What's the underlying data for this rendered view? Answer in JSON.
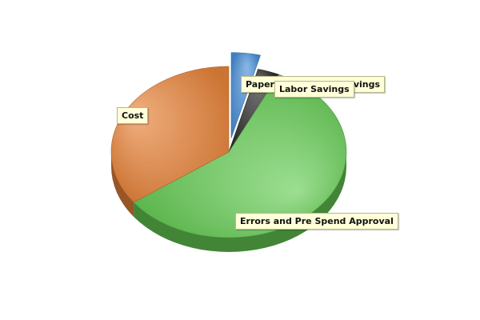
{
  "chart_data": {
    "type": "pie",
    "title": "",
    "slices": [
      {
        "label": "Paper and Storage Savings",
        "value": 4.0,
        "color": "#4a90d8"
      },
      {
        "label": "Labor Savings",
        "value": 3.0,
        "color": "#2e2e2e"
      },
      {
        "label": "Errors and Pre Spend Approval",
        "value": 58.0,
        "color": "#66cc55"
      },
      {
        "label": "Cost",
        "value": 35.0,
        "color": "#e8843a"
      }
    ],
    "exploded": [
      "Paper and Storage Savings"
    ],
    "legend": "none",
    "style": "3d"
  }
}
